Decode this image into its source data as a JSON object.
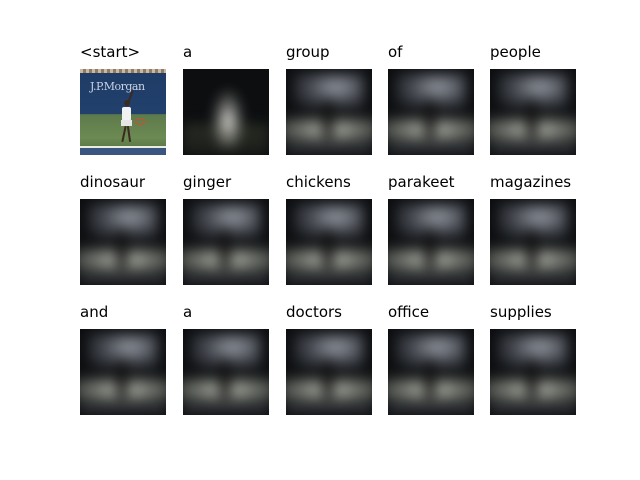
{
  "words": [
    "<start>",
    "a",
    "group",
    "of",
    "people",
    "dinosaur",
    "ginger",
    "chickens",
    "parakeet",
    "magazines",
    "and",
    "a",
    "doctors",
    "office",
    "supplies"
  ],
  "photo_sponsor_text": "J.P.Morgan"
}
